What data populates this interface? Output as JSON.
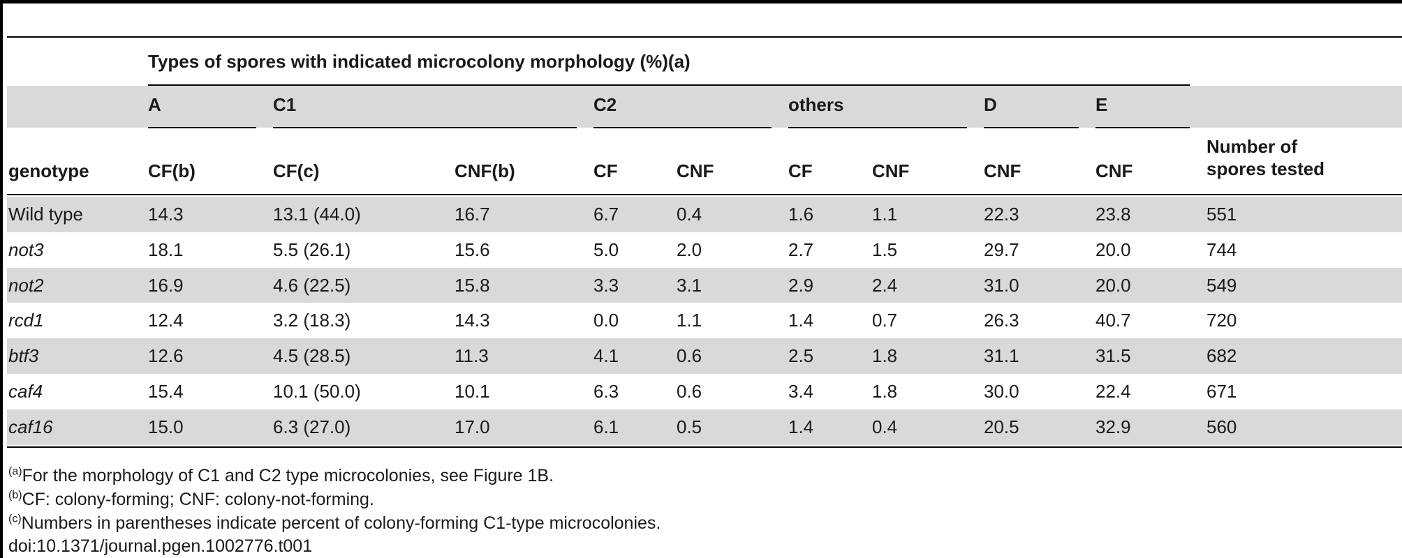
{
  "table": {
    "title_header": "Types of spores with indicated microcolony morphology (%)(a)",
    "groups": [
      "A",
      "C1",
      "C2",
      "others",
      "D",
      "E"
    ],
    "columns": [
      "genotype",
      "CF(b)",
      "CF(c)",
      "CNF(b)",
      "CF",
      "CNF",
      "CF",
      "CNF",
      "CNF",
      "CNF",
      "Number of spores tested"
    ],
    "rows": [
      [
        "Wild type",
        "14.3",
        "13.1 (44.0)",
        "16.7",
        "6.7",
        "0.4",
        "1.6",
        "1.1",
        "22.3",
        "23.8",
        "551"
      ],
      [
        "not3",
        "18.1",
        "5.5 (26.1)",
        "15.6",
        "5.0",
        "2.0",
        "2.7",
        "1.5",
        "29.7",
        "20.0",
        "744"
      ],
      [
        "not2",
        "16.9",
        "4.6 (22.5)",
        "15.8",
        "3.3",
        "3.1",
        "2.9",
        "2.4",
        "31.0",
        "20.0",
        "549"
      ],
      [
        "rcd1",
        "12.4",
        "3.2 (18.3)",
        "14.3",
        "0.0",
        "1.1",
        "1.4",
        "0.7",
        "26.3",
        "40.7",
        "720"
      ],
      [
        "btf3",
        "12.6",
        "4.5 (28.5)",
        "11.3",
        "4.1",
        "0.6",
        "2.5",
        "1.8",
        "31.1",
        "31.5",
        "682"
      ],
      [
        "caf4",
        "15.4",
        "10.1 (50.0)",
        "10.1",
        "6.3",
        "0.6",
        "3.4",
        "1.8",
        "30.0",
        "22.4",
        "671"
      ],
      [
        "caf16",
        "15.0",
        "6.3 (27.0)",
        "17.0",
        "6.1",
        "0.5",
        "1.4",
        "0.4",
        "20.5",
        "32.9",
        "560"
      ]
    ]
  },
  "footnotes": [
    {
      "mark": "(a)",
      "text": "For the morphology of C1 and C2 type microcolonies, see Figure 1B."
    },
    {
      "mark": "(b)",
      "text": "CF: colony-forming; CNF: colony-not-forming."
    },
    {
      "mark": "(c)",
      "text": "Numbers in parentheses indicate percent of colony-forming C1-type microcolonies."
    }
  ],
  "doi": "doi:10.1371/journal.pgen.1002776.t001"
}
